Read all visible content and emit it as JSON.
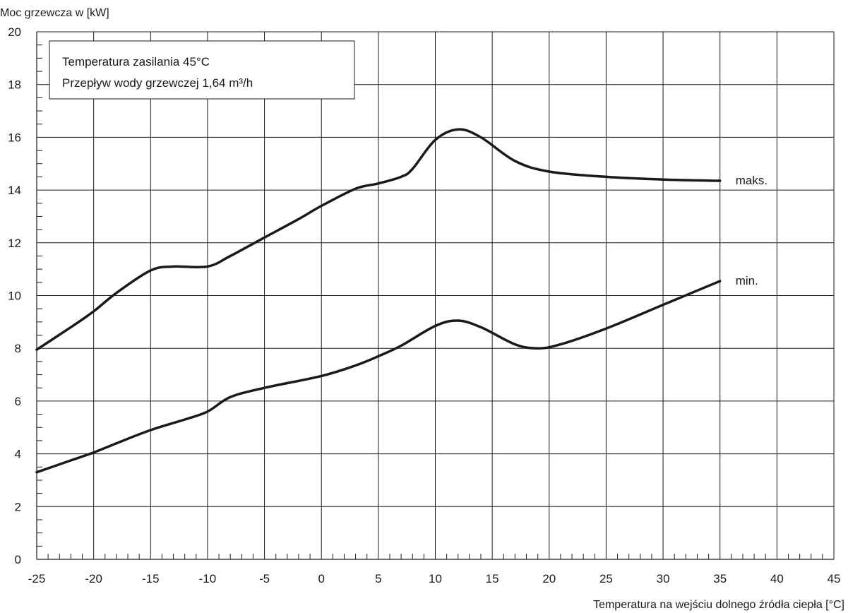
{
  "chart_data": {
    "type": "line",
    "ylabel": "Moc grzewcza w [kW]",
    "xlabel": "Temperatura na wejściu dolnego źródła ciepła [°C]",
    "xlim": [
      -25,
      45
    ],
    "ylim": [
      0,
      20
    ],
    "x_ticks": [
      "-25",
      "-20",
      "-15",
      "-10",
      "-5",
      "0",
      "5",
      "10",
      "15",
      "20",
      "25",
      "30",
      "35",
      "40",
      "45"
    ],
    "y_ticks": [
      "0",
      "2",
      "4",
      "6",
      "8",
      "10",
      "12",
      "14",
      "16",
      "18",
      "20"
    ],
    "grid": true,
    "annotation_lines": [
      "Temperatura zasilania 45°C",
      "Przepływ wody grzewczej 1,64 m³/h"
    ],
    "series": [
      {
        "name": "maks.",
        "x": [
          -25,
          -22,
          -20,
          -18,
          -15,
          -13,
          -10,
          -8,
          -5,
          -2,
          0,
          3,
          5,
          7,
          8,
          10,
          12,
          14,
          17,
          20,
          25,
          30,
          35
        ],
        "y": [
          7.95,
          8.8,
          9.4,
          10.1,
          10.95,
          11.1,
          11.1,
          11.5,
          12.2,
          12.9,
          13.4,
          14.05,
          14.25,
          14.5,
          14.8,
          15.9,
          16.3,
          16.0,
          15.1,
          14.7,
          14.5,
          14.4,
          14.35
        ]
      },
      {
        "name": "min.",
        "x": [
          -25,
          -22,
          -20,
          -18,
          -15,
          -12,
          -10,
          -8,
          -5,
          0,
          3,
          5,
          7,
          10,
          12,
          14,
          17,
          19,
          21,
          25,
          30,
          35
        ],
        "y": [
          3.3,
          3.75,
          4.05,
          4.4,
          4.9,
          5.3,
          5.6,
          6.15,
          6.5,
          6.95,
          7.35,
          7.7,
          8.1,
          8.85,
          9.05,
          8.8,
          8.15,
          8.0,
          8.15,
          8.75,
          9.65,
          10.55
        ]
      }
    ]
  }
}
